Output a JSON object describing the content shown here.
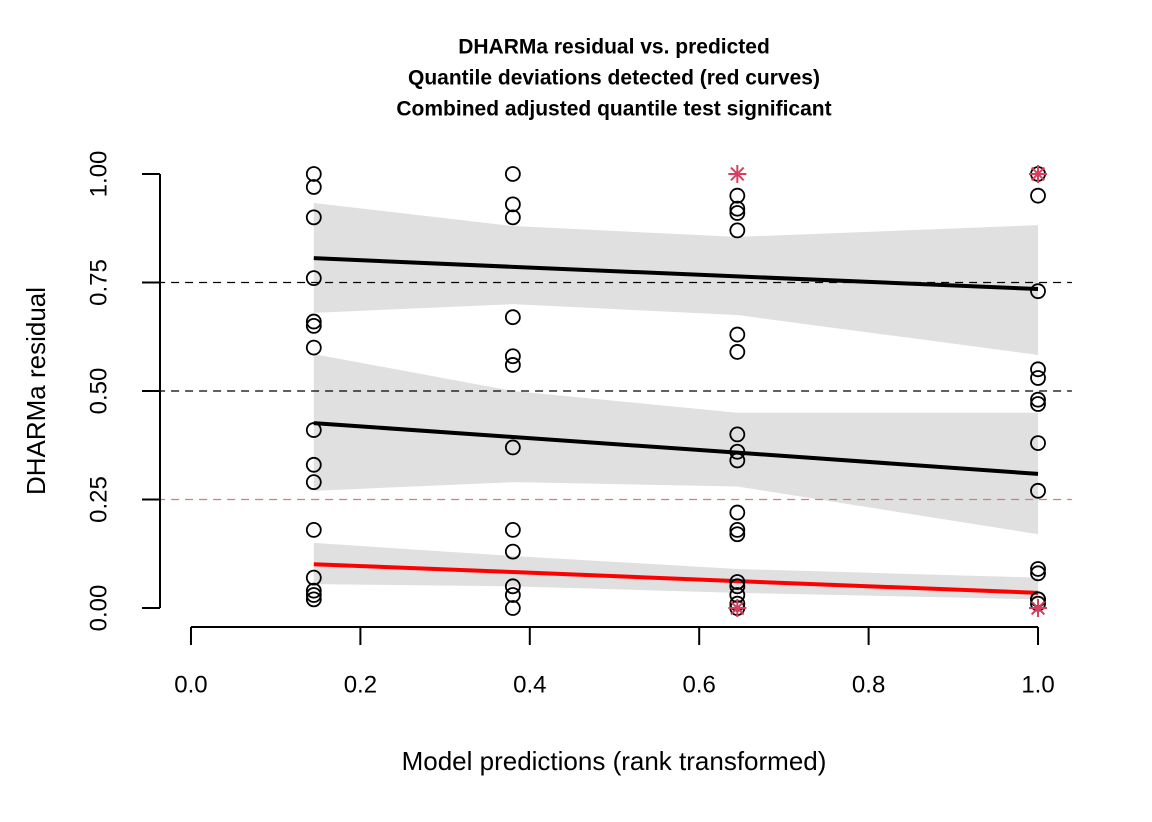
{
  "chart_data": {
    "type": "scatter",
    "title": [
      "DHARMa residual vs. predicted",
      "Quantile deviations detected (red curves)",
      "Combined adjusted quantile test significant"
    ],
    "title_color": "#ff0000",
    "xlabel": "Model predictions (rank transformed)",
    "ylabel": "DHARMa residual",
    "xlim": [
      -0.04,
      1.04
    ],
    "ylim": [
      -0.04,
      1.04
    ],
    "xticks": [
      {
        "value": 0,
        "label": "0.0"
      },
      0.2,
      0.4,
      0.6,
      0.8,
      {
        "value": 1,
        "label": "1.0"
      }
    ],
    "yticks": [
      {
        "value": 0,
        "label": "0.00"
      },
      0.25,
      {
        "value": 0.5,
        "label": "0.50"
      },
      0.75,
      {
        "value": 1,
        "label": "1.00"
      }
    ],
    "hlines": [
      {
        "value": 0.25,
        "color": "#f07070"
      },
      {
        "value": 0.5,
        "color": "#000000"
      },
      {
        "value": 0.75,
        "color": "#000000"
      }
    ],
    "curves": {
      "x": [
        0.145,
        0.38,
        0.645,
        1.0
      ],
      "band_color": "#e0e0e0",
      "bands": [
        {
          "color": "#ff0000",
          "values": [
            0.101,
            0.083,
            0.062,
            0.035
          ],
          "lower": [
            0.055,
            0.05,
            0.035,
            0.02
          ],
          "upper": [
            0.15,
            0.12,
            0.09,
            0.07
          ]
        },
        {
          "color": "#000000",
          "values": [
            0.426,
            0.394,
            0.358,
            0.309
          ],
          "lower": [
            0.27,
            0.29,
            0.28,
            0.17
          ],
          "upper": [
            0.585,
            0.5,
            0.45,
            0.45
          ]
        },
        {
          "color": "#000000",
          "values": [
            0.806,
            0.786,
            0.764,
            0.735
          ],
          "lower": [
            0.68,
            0.7,
            0.675,
            0.583
          ],
          "upper": [
            0.933,
            0.88,
            0.855,
            0.882
          ]
        }
      ]
    },
    "point_color": "#000000",
    "points": [
      {
        "x": 0.145,
        "values": [
          1.0,
          0.97,
          0.9,
          0.76,
          0.66,
          0.65,
          0.6,
          0.41,
          0.33,
          0.29,
          0.18,
          0.07,
          0.04,
          0.03,
          0.02
        ]
      },
      {
        "x": 0.38,
        "values": [
          1.0,
          0.93,
          0.9,
          0.67,
          0.58,
          0.56,
          0.37,
          0.18,
          0.13,
          0.05,
          0.03,
          0.0
        ]
      },
      {
        "x": 0.645,
        "values": [
          0.95,
          0.92,
          0.91,
          0.87,
          0.63,
          0.59,
          0.4,
          0.36,
          0.34,
          0.22,
          0.18,
          0.17,
          0.06,
          0.05,
          0.03,
          0.01,
          0.0
        ]
      },
      {
        "x": 1.0,
        "values": [
          1.0,
          0.95,
          0.73,
          0.55,
          0.53,
          0.48,
          0.47,
          0.38,
          0.27,
          0.09,
          0.08,
          0.02,
          0.02,
          0.01
        ]
      }
    ],
    "outliers": {
      "color": "#d6405e",
      "x": [
        0.645,
        0.645,
        1.0,
        1.0
      ],
      "values": [
        1.0,
        0.0,
        1.0,
        0.0
      ]
    }
  }
}
